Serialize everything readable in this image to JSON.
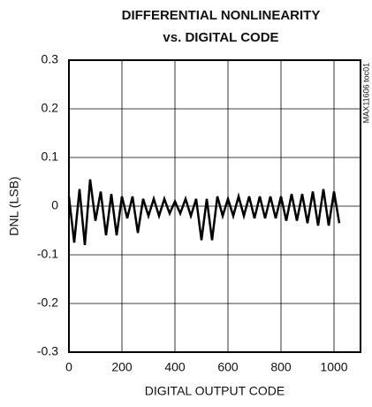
{
  "chart_data": {
    "type": "line",
    "title": "DIFFERENTIAL NONLINEARITY",
    "subtitle": "vs. DIGITAL CODE",
    "x_label": "DIGITAL OUTPUT CODE",
    "y_label": "DNL (LSB)",
    "annotation": "MAX11606 toc01",
    "color": "#000000",
    "grid": true,
    "xlim": [
      0,
      1100
    ],
    "xticks": [
      0,
      200,
      400,
      600,
      800,
      1000
    ],
    "ylim": [
      -0.3,
      0.3
    ],
    "yticks": [
      -0.3,
      -0.2,
      -0.1,
      0,
      0.1,
      0.2,
      0.3
    ],
    "x": [
      0,
      20,
      40,
      60,
      80,
      100,
      120,
      140,
      160,
      180,
      200,
      220,
      240,
      260,
      280,
      300,
      320,
      340,
      360,
      380,
      400,
      420,
      440,
      460,
      480,
      500,
      520,
      540,
      560,
      580,
      600,
      620,
      640,
      660,
      680,
      700,
      720,
      740,
      760,
      780,
      800,
      820,
      840,
      860,
      880,
      900,
      920,
      940,
      960,
      980,
      1000,
      1020
    ],
    "values": [
      0.02,
      -0.075,
      0.035,
      -0.08,
      0.055,
      -0.03,
      0.03,
      -0.06,
      0.025,
      -0.06,
      0.02,
      -0.025,
      0.02,
      -0.055,
      0.015,
      -0.02,
      0.015,
      -0.02,
      0.015,
      -0.015,
      0.01,
      -0.015,
      0.015,
      -0.02,
      0.015,
      -0.07,
      0.015,
      -0.07,
      0.02,
      -0.02,
      0.015,
      -0.02,
      0.02,
      -0.02,
      0.02,
      -0.025,
      0.02,
      -0.025,
      0.02,
      -0.025,
      0.02,
      -0.03,
      0.025,
      -0.03,
      0.025,
      -0.035,
      0.03,
      -0.04,
      0.035,
      -0.04,
      0.03,
      -0.035
    ]
  }
}
